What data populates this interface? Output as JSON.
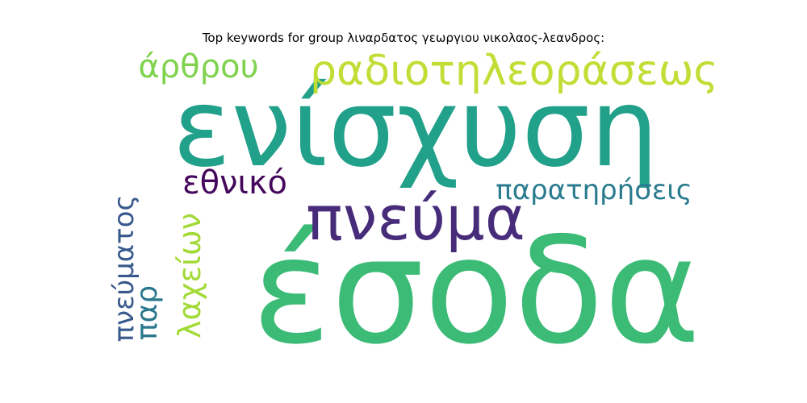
{
  "title": "Top keywords for group λιναρδατος γεωργιου νικολαος-λεανδρος:",
  "words": [
    {
      "text": "ενίσχυση",
      "color": "#21a08a",
      "rotate": false
    },
    {
      "text": "έσοδα",
      "color": "#3bbb76",
      "rotate": false
    },
    {
      "text": "πνεύμα",
      "color": "#472c7a",
      "rotate": false
    },
    {
      "text": "ραδιοτηλεοράσεως",
      "color": "#c0de35",
      "rotate": false
    },
    {
      "text": "άρθρου",
      "color": "#7fd34e",
      "rotate": false
    },
    {
      "text": "εθνικό",
      "color": "#46085c",
      "rotate": false
    },
    {
      "text": "παρατηρήσεις",
      "color": "#297b8e",
      "rotate": false
    },
    {
      "text": "πνεύματος",
      "color": "#38598c",
      "rotate": true
    },
    {
      "text": "λαχείων",
      "color": "#a2da37",
      "rotate": true
    },
    {
      "text": "παρ",
      "color": "#2a788e",
      "rotate": true
    }
  ]
}
